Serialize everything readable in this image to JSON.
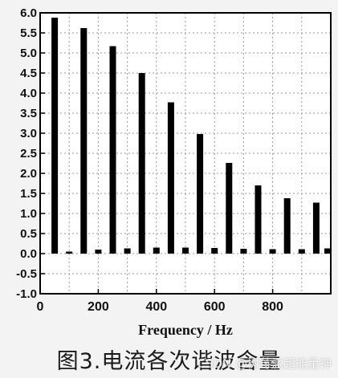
{
  "chart_data": {
    "type": "bar",
    "xlabel": "Frequency / Hz",
    "ylabel": "",
    "xlim": [
      0,
      1000
    ],
    "ylim": [
      -1.0,
      6.0
    ],
    "xticks": [
      0,
      200,
      400,
      600,
      800
    ],
    "xtick_labels": [
      "0",
      "200",
      "400",
      "600",
      "800"
    ],
    "yticks": [
      -1.0,
      -0.5,
      0.0,
      0.5,
      1.0,
      1.5,
      2.0,
      2.5,
      3.0,
      3.5,
      4.0,
      4.5,
      5.0,
      5.5,
      6.0
    ],
    "ytick_labels": [
      "-1.0",
      "-0.5",
      "0.0",
      "0.5",
      "1.0",
      "1.5",
      "2.0",
      "2.5",
      "3.0",
      "3.5",
      "4.0",
      "4.5",
      "5.0",
      "5.5",
      "6.0"
    ],
    "grid": true,
    "bar_color": "#000000",
    "x": [
      50,
      100,
      150,
      200,
      250,
      300,
      350,
      400,
      450,
      500,
      550,
      600,
      650,
      700,
      750,
      800,
      850,
      900,
      950,
      1000
    ],
    "values": [
      5.88,
      0.05,
      5.62,
      0.1,
      5.17,
      0.13,
      4.5,
      0.15,
      3.77,
      0.15,
      2.98,
      0.14,
      2.26,
      0.12,
      1.7,
      0.11,
      1.38,
      0.11,
      1.27,
      0.13
    ]
  },
  "caption": "图3.电流各次谐波含量",
  "watermark": "CSDN @树莓派超能量神"
}
